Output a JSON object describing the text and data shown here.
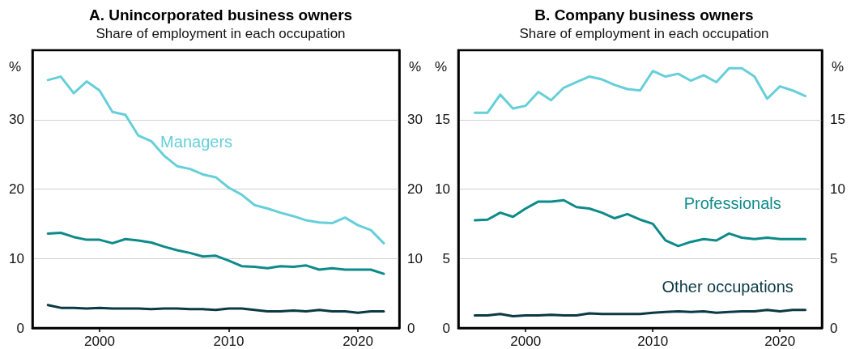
{
  "chart_data": [
    {
      "type": "line",
      "title": "A. Unincorporated business owners",
      "subtitle": "Share of employment in each occupation",
      "ylabel": "%",
      "y2label": "%",
      "x": [
        1996,
        1997,
        1998,
        1999,
        2000,
        2001,
        2002,
        2003,
        2004,
        2005,
        2006,
        2007,
        2008,
        2009,
        2010,
        2011,
        2012,
        2013,
        2014,
        2015,
        2016,
        2017,
        2018,
        2019,
        2020,
        2021,
        2022
      ],
      "xlim": [
        1994.8,
        2023.2
      ],
      "xticks": [
        2000,
        2010,
        2020
      ],
      "ylim": [
        0,
        40
      ],
      "yticks": [
        0,
        10,
        20,
        30
      ],
      "y2lim": [
        0,
        40
      ],
      "y2ticks": [
        0,
        10,
        20,
        30
      ],
      "grid": "y",
      "legend": false,
      "marker": "none",
      "line_style": "solid",
      "series": [
        {
          "name": "Managers",
          "color": "#66cfd9",
          "values": [
            35.7,
            36.2,
            33.8,
            35.5,
            34.2,
            31.1,
            30.7,
            27.7,
            26.9,
            24.8,
            23.3,
            22.9,
            22.1,
            21.7,
            20.2,
            19.2,
            17.7,
            17.2,
            16.6,
            16.1,
            15.5,
            15.2,
            15.1,
            15.9,
            14.8,
            14.1,
            12.2
          ]
        },
        {
          "color": "#0e8a8a",
          "values": [
            13.6,
            13.7,
            13.1,
            12.7,
            12.7,
            12.2,
            12.8,
            12.6,
            12.3,
            11.7,
            11.2,
            10.8,
            10.3,
            10.4,
            9.7,
            8.9,
            8.8,
            8.6,
            8.9,
            8.8,
            9.0,
            8.4,
            8.6,
            8.4,
            8.4,
            8.4,
            7.8
          ]
        },
        {
          "color": "#0b3a44",
          "values": [
            3.3,
            2.9,
            2.9,
            2.8,
            2.9,
            2.8,
            2.8,
            2.8,
            2.7,
            2.8,
            2.8,
            2.7,
            2.7,
            2.6,
            2.8,
            2.8,
            2.6,
            2.4,
            2.4,
            2.5,
            2.4,
            2.6,
            2.4,
            2.4,
            2.2,
            2.4,
            2.4
          ]
        }
      ]
    },
    {
      "type": "line",
      "title": "B. Company business owners",
      "subtitle": "Share of employment in each occupation",
      "ylabel": "%",
      "y2label": "%",
      "x": [
        1996,
        1997,
        1998,
        1999,
        2000,
        2001,
        2002,
        2003,
        2004,
        2005,
        2006,
        2007,
        2008,
        2009,
        2010,
        2011,
        2012,
        2013,
        2014,
        2015,
        2016,
        2017,
        2018,
        2019,
        2020,
        2021,
        2022
      ],
      "xlim": [
        1994.7,
        2023.3
      ],
      "xticks": [
        2000,
        2010,
        2020
      ],
      "ylim": [
        0,
        20
      ],
      "yticks": [
        0,
        5,
        10,
        15
      ],
      "y2lim": [
        0,
        20
      ],
      "y2ticks": [
        0,
        5,
        10,
        15
      ],
      "grid": "y",
      "legend": false,
      "marker": "none",
      "line_style": "solid",
      "series": [
        {
          "color": "#66cfd9",
          "values": [
            15.5,
            15.5,
            16.8,
            15.8,
            16.0,
            17.0,
            16.4,
            17.3,
            17.7,
            18.1,
            17.9,
            17.5,
            17.2,
            17.1,
            18.5,
            18.1,
            18.3,
            17.8,
            18.2,
            17.7,
            18.7,
            18.7,
            18.1,
            16.5,
            17.4,
            17.1,
            16.7
          ]
        },
        {
          "name": "Professionals",
          "color": "#0e8a8a",
          "values": [
            7.75,
            7.8,
            8.3,
            8.0,
            8.6,
            9.1,
            9.1,
            9.2,
            8.7,
            8.6,
            8.3,
            7.9,
            8.2,
            7.8,
            7.5,
            6.3,
            5.9,
            6.2,
            6.4,
            6.3,
            6.8,
            6.5,
            6.4,
            6.5,
            6.4,
            6.4,
            6.4
          ]
        },
        {
          "name": "Other occupations",
          "color": "#0b3a44",
          "values": [
            0.9,
            0.9,
            1.0,
            0.85,
            0.9,
            0.9,
            0.95,
            0.9,
            0.9,
            1.05,
            1.0,
            1.0,
            1.0,
            1.0,
            1.1,
            1.15,
            1.2,
            1.15,
            1.2,
            1.1,
            1.15,
            1.2,
            1.2,
            1.3,
            1.2,
            1.3,
            1.3
          ]
        }
      ]
    }
  ]
}
